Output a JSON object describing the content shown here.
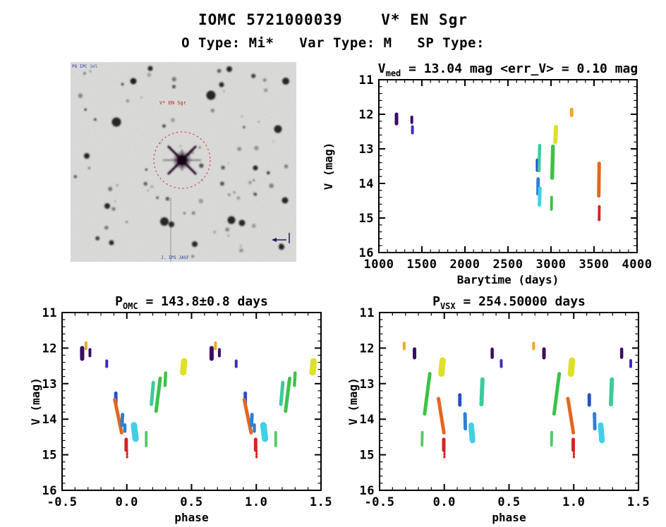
{
  "page": {
    "title": "IOMC 5721000039    V* EN Sgr",
    "subtitle": "O Type: Mi*   Var Type: M   SP Type:"
  },
  "finder": {
    "target_label": "V* EN Sgr",
    "corner_top_left": "PO IPC inl",
    "corner_bottom": "J. IPS JASF",
    "circle_color": "#cc3333",
    "label_color": "#bb2222",
    "annotation_color": "#2233aa"
  },
  "palette": {
    "purple": "#3a0c63",
    "violet": "#3e2db8",
    "navy": "#2451c4",
    "blue": "#2e80d2",
    "cyan": "#3fd0e8",
    "teal": "#3cca9e",
    "green": "#3cc247",
    "ltgreen": "#52cb66",
    "yellow": "#dfe02a",
    "gold": "#f0a726",
    "orange": "#e2671e",
    "red": "#d52323"
  },
  "chart_data": [
    {
      "type": "scatter",
      "name": "lightcurve_barytime",
      "title_parts": [
        {
          "t": "V"
        },
        {
          "s": "med"
        },
        {
          "t": " = 13.04 mag <err_V> = 0.10 mag"
        }
      ],
      "xlabel": "Barytime (days)",
      "ylabel": "V (mag)",
      "xlim": [
        1000,
        4000
      ],
      "ylim_top": 11,
      "ylim_bottom": 16,
      "x_major": 500,
      "x_minor": 100,
      "y_major": 1,
      "y_minor": 0.2,
      "x_decimals": 0,
      "repeat": false,
      "clusters": [
        {
          "c": "purple",
          "x1": 1205,
          "v1": 12.0,
          "x2": 1205,
          "v2": 12.27,
          "w": 5,
          "d": "s"
        },
        {
          "c": "purple",
          "x1": 1383,
          "v1": 12.08,
          "x2": 1383,
          "v2": 12.24,
          "w": 4,
          "d": "s"
        },
        {
          "c": "violet",
          "x1": 1390,
          "v1": 12.36,
          "x2": 1390,
          "v2": 12.54,
          "w": 4,
          "d": "s"
        },
        {
          "c": "navy",
          "x1": 2843,
          "v1": 13.33,
          "x2": 2843,
          "v2": 13.62,
          "w": 5,
          "d": "2 2.4"
        },
        {
          "c": "teal",
          "x1": 2868,
          "v1": 12.9,
          "x2": 2861,
          "v2": 13.63,
          "w": 4.5,
          "d": "3 1.4"
        },
        {
          "c": "blue",
          "x1": 2851,
          "v1": 13.87,
          "x2": 2848,
          "v2": 14.33,
          "w": 5,
          "d": "2.6 2"
        },
        {
          "c": "cyan",
          "x1": 2871,
          "v1": 14.14,
          "x2": 2866,
          "v2": 14.62,
          "w": 5,
          "d": "3 1.4"
        },
        {
          "c": "green",
          "x1": 3023,
          "v1": 12.93,
          "x2": 3013,
          "v2": 13.85,
          "w": 5.5,
          "d": "3.2 1.4"
        },
        {
          "c": "green",
          "x1": 3007,
          "v1": 14.4,
          "x2": 3005,
          "v2": 14.75,
          "w": 4,
          "d": "2.4 1.6"
        },
        {
          "c": "yellow",
          "x1": 3058,
          "v1": 12.37,
          "x2": 3051,
          "v2": 12.8,
          "w": 6,
          "d": "4 1.2"
        },
        {
          "c": "gold",
          "x1": 3240,
          "v1": 11.86,
          "x2": 3240,
          "v2": 12.03,
          "w": 5,
          "d": "s"
        },
        {
          "c": "orange",
          "x1": 3560,
          "v1": 13.42,
          "x2": 3555,
          "v2": 14.36,
          "w": 5,
          "d": "2.4 1.6"
        },
        {
          "c": "red",
          "x1": 3561,
          "v1": 14.67,
          "x2": 3559,
          "v2": 15.08,
          "w": 4,
          "d": "1.8 2.4"
        }
      ]
    },
    {
      "type": "scatter",
      "name": "phase_folded_omc",
      "title_parts": [
        {
          "t": "P"
        },
        {
          "s": "OMC"
        },
        {
          "t": " = 143.8±0.8 days"
        }
      ],
      "xlabel": "phase",
      "ylabel": "V (mag)",
      "xlim": [
        -0.5,
        1.5
      ],
      "ylim_top": 11,
      "ylim_bottom": 16,
      "x_major": 0.5,
      "x_minor": 0.1,
      "y_major": 1,
      "y_minor": 0.2,
      "x_decimals": 1,
      "repeat": true,
      "clusters": [
        {
          "c": "purple",
          "x1": -0.345,
          "v1": 12.0,
          "x2": -0.345,
          "v2": 12.3,
          "w": 6,
          "d": "s"
        },
        {
          "c": "gold",
          "x1": -0.315,
          "v1": 11.85,
          "x2": -0.315,
          "v2": 12.02,
          "w": 4,
          "d": "s"
        },
        {
          "c": "purple",
          "x1": -0.285,
          "v1": 12.04,
          "x2": -0.285,
          "v2": 12.22,
          "w": 4,
          "d": "s"
        },
        {
          "c": "violet",
          "x1": -0.155,
          "v1": 12.36,
          "x2": -0.155,
          "v2": 12.52,
          "w": 4,
          "d": "s"
        },
        {
          "c": "navy",
          "x1": -0.085,
          "v1": 13.27,
          "x2": -0.085,
          "v2": 13.55,
          "w": 5,
          "d": "2 2.2"
        },
        {
          "c": "orange",
          "x1": -0.093,
          "v1": 13.45,
          "x2": -0.04,
          "v2": 14.38,
          "w": 5,
          "d": "2.2 1.4"
        },
        {
          "c": "blue",
          "x1": -0.033,
          "v1": 13.87,
          "x2": -0.037,
          "v2": 14.17,
          "w": 5,
          "d": "3 1.6"
        },
        {
          "c": "blue",
          "x1": -0.015,
          "v1": 14.16,
          "x2": -0.015,
          "v2": 14.34,
          "w": 4.5,
          "d": "s"
        },
        {
          "c": "red",
          "x1": -0.005,
          "v1": 14.57,
          "x2": -0.005,
          "v2": 14.87,
          "w": 5,
          "d": "2 1.6"
        },
        {
          "c": "red",
          "x1": 0.002,
          "v1": 14.88,
          "x2": 0.002,
          "v2": 15.07,
          "w": 3,
          "d": "1.6 2.6"
        },
        {
          "c": "cyan",
          "x1": 0.055,
          "v1": 14.17,
          "x2": 0.068,
          "v2": 14.55,
          "w": 9,
          "d": "4.5 1.2"
        },
        {
          "c": "ltgreen",
          "x1": 0.15,
          "v1": 14.37,
          "x2": 0.15,
          "v2": 14.75,
          "w": 4,
          "d": "2.2 2"
        },
        {
          "c": "teal",
          "x1": 0.205,
          "v1": 12.97,
          "x2": 0.19,
          "v2": 13.58,
          "w": 5,
          "d": "3 1.4"
        },
        {
          "c": "green",
          "x1": 0.258,
          "v1": 12.85,
          "x2": 0.225,
          "v2": 13.8,
          "w": 5,
          "d": "3 1.4"
        },
        {
          "c": "green",
          "x1": 0.3,
          "v1": 12.7,
          "x2": 0.295,
          "v2": 13.05,
          "w": 4.5,
          "d": "2.6 1.6"
        },
        {
          "c": "yellow",
          "x1": 0.443,
          "v1": 12.37,
          "x2": 0.435,
          "v2": 12.7,
          "w": 9,
          "d": "4.5 1.2"
        }
      ]
    },
    {
      "type": "scatter",
      "name": "phase_folded_vsx",
      "title_parts": [
        {
          "t": "P"
        },
        {
          "s": "VSX"
        },
        {
          "t": " = 254.50000 days"
        }
      ],
      "xlabel": "phase",
      "ylabel": "V (mag)",
      "xlim": [
        -0.5,
        1.5
      ],
      "ylim_top": 11,
      "ylim_bottom": 16,
      "x_major": 0.5,
      "x_minor": 0.1,
      "y_major": 1,
      "y_minor": 0.2,
      "x_decimals": 1,
      "repeat": true,
      "clusters": [
        {
          "c": "gold",
          "x1": -0.31,
          "v1": 11.86,
          "x2": -0.31,
          "v2": 12.02,
          "w": 4,
          "d": "s"
        },
        {
          "c": "purple",
          "x1": -0.23,
          "v1": 12.03,
          "x2": -0.23,
          "v2": 12.27,
          "w": 5,
          "d": "s"
        },
        {
          "c": "green",
          "x1": -0.112,
          "v1": 12.72,
          "x2": -0.152,
          "v2": 13.85,
          "w": 5,
          "d": "3 1.4"
        },
        {
          "c": "ltgreen",
          "x1": -0.17,
          "v1": 14.37,
          "x2": -0.172,
          "v2": 14.73,
          "w": 4,
          "d": "2.2 2"
        },
        {
          "c": "yellow",
          "x1": -0.013,
          "v1": 12.35,
          "x2": -0.022,
          "v2": 12.72,
          "w": 9,
          "d": "4.5 1.2"
        },
        {
          "c": "orange",
          "x1": -0.045,
          "v1": 13.42,
          "x2": -0.003,
          "v2": 14.38,
          "w": 5,
          "d": "2.2 1.4"
        },
        {
          "c": "red",
          "x1": -0.004,
          "v1": 14.57,
          "x2": -0.004,
          "v2": 14.87,
          "w": 5,
          "d": "2 1.6"
        },
        {
          "c": "red",
          "x1": 0.001,
          "v1": 14.88,
          "x2": 0.001,
          "v2": 15.07,
          "w": 3,
          "d": "1.6 2.6"
        },
        {
          "c": "navy",
          "x1": 0.12,
          "v1": 13.32,
          "x2": 0.12,
          "v2": 13.6,
          "w": 5,
          "d": "2 2.2"
        },
        {
          "c": "blue",
          "x1": 0.16,
          "v1": 13.85,
          "x2": 0.163,
          "v2": 14.3,
          "w": 5,
          "d": "2.6 2"
        },
        {
          "c": "cyan",
          "x1": 0.208,
          "v1": 14.17,
          "x2": 0.218,
          "v2": 14.6,
          "w": 8,
          "d": "4.5 1.2"
        },
        {
          "c": "teal",
          "x1": 0.295,
          "v1": 12.88,
          "x2": 0.287,
          "v2": 13.58,
          "w": 6,
          "d": "3.2 1.4"
        },
        {
          "c": "purple",
          "x1": 0.37,
          "v1": 12.03,
          "x2": 0.37,
          "v2": 12.26,
          "w": 4.5,
          "d": "s"
        },
        {
          "c": "violet",
          "x1": 0.44,
          "v1": 12.35,
          "x2": 0.44,
          "v2": 12.52,
          "w": 4,
          "d": "s"
        }
      ]
    }
  ]
}
